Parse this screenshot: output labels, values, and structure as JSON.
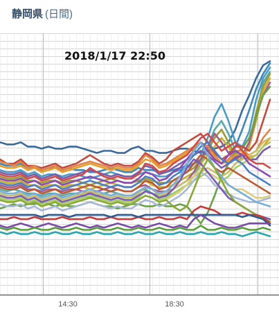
{
  "header": {
    "title": "静岡県",
    "subtitle": "(日間)"
  },
  "colors": {
    "grid_h": "#d6d6d6",
    "grid_v": "#e6e6e6",
    "axis": "#6a6a6a"
  },
  "chart_data": {
    "type": "line",
    "title": "",
    "timestamp": "2018/1/17 22:50",
    "x_ticks": [
      "14:30",
      "18:30"
    ],
    "grid": true,
    "series": [
      {
        "color": "#3a6a9a",
        "values": [
          60,
          59,
          59,
          60,
          58,
          58,
          57,
          58,
          57,
          57,
          58,
          58,
          57,
          56,
          55,
          56,
          56,
          55,
          55,
          57,
          58,
          56,
          56,
          55,
          55,
          56,
          57,
          57,
          56,
          55,
          56,
          57,
          58,
          60,
          66,
          75,
          82,
          90,
          96,
          98
        ]
      },
      {
        "color": "#3e88b8",
        "values": [
          50,
          49,
          49,
          50,
          48,
          48,
          47,
          48,
          48,
          47,
          48,
          47,
          47,
          46,
          46,
          47,
          48,
          47,
          46,
          46,
          48,
          47,
          47,
          46,
          46,
          47,
          48,
          49,
          50,
          52,
          58,
          64,
          60,
          55,
          58,
          66,
          75,
          85,
          92,
          97
        ]
      },
      {
        "color": "#4a9cc4",
        "values": [
          47,
          46,
          46,
          47,
          45,
          46,
          44,
          45,
          45,
          44,
          45,
          45,
          44,
          43,
          44,
          45,
          46,
          45,
          44,
          44,
          45,
          46,
          45,
          44,
          44,
          46,
          47,
          48,
          50,
          54,
          62,
          72,
          78,
          70,
          60,
          58,
          65,
          80,
          90,
          95
        ]
      },
      {
        "color": "#5aa8a8",
        "values": [
          38,
          37,
          38,
          37,
          36,
          36,
          35,
          36,
          36,
          35,
          36,
          36,
          35,
          34,
          35,
          36,
          37,
          36,
          35,
          35,
          37,
          38,
          36,
          35,
          35,
          36,
          38,
          40,
          44,
          50,
          58,
          66,
          70,
          64,
          56,
          52,
          58,
          72,
          88,
          93
        ]
      },
      {
        "color": "#9a9a3a",
        "values": [
          44,
          43,
          43,
          44,
          42,
          42,
          41,
          42,
          42,
          41,
          42,
          42,
          41,
          40,
          41,
          42,
          43,
          42,
          41,
          41,
          42,
          43,
          42,
          41,
          41,
          42,
          44,
          46,
          48,
          52,
          56,
          62,
          66,
          60,
          54,
          54,
          60,
          74,
          86,
          92
        ]
      },
      {
        "color": "#c6b032",
        "values": [
          42,
          41,
          41,
          42,
          40,
          40,
          39,
          40,
          40,
          39,
          40,
          40,
          39,
          38,
          39,
          40,
          41,
          40,
          39,
          39,
          41,
          42,
          40,
          39,
          39,
          40,
          42,
          44,
          46,
          50,
          54,
          58,
          62,
          58,
          52,
          52,
          58,
          70,
          84,
          90
        ]
      },
      {
        "color": "#a45c8c",
        "values": [
          40,
          39,
          39,
          40,
          38,
          38,
          37,
          38,
          38,
          37,
          38,
          38,
          37,
          36,
          37,
          38,
          39,
          38,
          37,
          37,
          39,
          40,
          38,
          37,
          37,
          38,
          40,
          42,
          46,
          52,
          58,
          64,
          60,
          55,
          52,
          54,
          60,
          72,
          82,
          88
        ]
      },
      {
        "color": "#6aa14a",
        "values": [
          29,
          30,
          31,
          30,
          31,
          31,
          32,
          31,
          30,
          31,
          30,
          30,
          31,
          32,
          31,
          30,
          30,
          29,
          30,
          31,
          31,
          30,
          30,
          31,
          30,
          30,
          31,
          30,
          26,
          22,
          27,
          35,
          44,
          50,
          55,
          57,
          62,
          72,
          82,
          86
        ]
      },
      {
        "color": "#c24a3c",
        "values": [
          52,
          50,
          50,
          52,
          49,
          49,
          48,
          49,
          50,
          48,
          49,
          50,
          52,
          54,
          52,
          50,
          49,
          50,
          49,
          49,
          51,
          55,
          53,
          50,
          52,
          56,
          58,
          60,
          62,
          64,
          60,
          55,
          52,
          54,
          58,
          58,
          56,
          60,
          70,
          80
        ]
      },
      {
        "color": "#e0854a",
        "values": [
          51,
          50,
          49,
          51,
          48,
          49,
          47,
          48,
          49,
          47,
          48,
          49,
          50,
          51,
          50,
          49,
          48,
          49,
          48,
          48,
          50,
          54,
          52,
          49,
          50,
          52,
          54,
          56,
          58,
          60,
          58,
          54,
          50,
          52,
          56,
          56,
          54,
          56,
          62,
          66
        ]
      },
      {
        "color": "#e6a02a",
        "values": [
          49,
          48,
          48,
          49,
          47,
          48,
          46,
          47,
          48,
          46,
          47,
          48,
          49,
          50,
          49,
          48,
          47,
          48,
          47,
          47,
          49,
          52,
          51,
          48,
          49,
          51,
          53,
          55,
          57,
          60,
          56,
          53,
          50,
          51,
          54,
          55,
          53,
          54,
          58,
          62
        ]
      },
      {
        "color": "#7c5ca8",
        "values": [
          46,
          45,
          45,
          46,
          44,
          45,
          43,
          44,
          45,
          43,
          44,
          45,
          46,
          47,
          46,
          45,
          44,
          45,
          44,
          44,
          46,
          49,
          48,
          45,
          46,
          48,
          50,
          52,
          54,
          56,
          54,
          51,
          48,
          50,
          53,
          54,
          52,
          52,
          56,
          58
        ]
      },
      {
        "color": "#c8be6a",
        "values": [
          36,
          35,
          35,
          36,
          34,
          35,
          33,
          34,
          35,
          33,
          34,
          35,
          36,
          37,
          36,
          35,
          34,
          35,
          34,
          34,
          36,
          39,
          38,
          35,
          36,
          38,
          40,
          42,
          44,
          46,
          48,
          46,
          44,
          46,
          50,
          52,
          54,
          56,
          60,
          62
        ]
      },
      {
        "color": "#a6cc66",
        "values": [
          34,
          33,
          33,
          34,
          32,
          33,
          31,
          32,
          33,
          31,
          32,
          33,
          34,
          35,
          34,
          33,
          32,
          33,
          32,
          32,
          34,
          37,
          36,
          33,
          34,
          36,
          38,
          40,
          42,
          44,
          46,
          44,
          42,
          44,
          48,
          50,
          52,
          54,
          58,
          60
        ]
      },
      {
        "color": "#d04a4a",
        "values": [
          45,
          44,
          44,
          45,
          43,
          44,
          42,
          43,
          44,
          42,
          43,
          44,
          45,
          48,
          46,
          44,
          43,
          44,
          43,
          43,
          45,
          50,
          49,
          46,
          47,
          50,
          52,
          54,
          58,
          62,
          64,
          60,
          56,
          58,
          60,
          56,
          52,
          50,
          50,
          48
        ]
      },
      {
        "color": "#8c4ab0",
        "values": [
          43,
          42,
          42,
          43,
          41,
          42,
          40,
          41,
          42,
          40,
          41,
          42,
          43,
          44,
          43,
          42,
          41,
          42,
          41,
          41,
          43,
          46,
          45,
          42,
          43,
          46,
          48,
          52,
          56,
          60,
          56,
          52,
          50,
          54,
          56,
          54,
          50,
          48,
          46,
          44
        ]
      },
      {
        "color": "#4c7ec4",
        "values": [
          41,
          40,
          40,
          41,
          39,
          40,
          38,
          39,
          40,
          38,
          39,
          40,
          41,
          42,
          41,
          40,
          39,
          40,
          39,
          39,
          41,
          44,
          43,
          40,
          41,
          44,
          46,
          50,
          54,
          58,
          60,
          56,
          52,
          50,
          52,
          50,
          46,
          44,
          42,
          40
        ]
      },
      {
        "color": "#b85a32",
        "values": [
          39,
          38,
          38,
          39,
          37,
          38,
          36,
          37,
          38,
          36,
          37,
          38,
          39,
          40,
          39,
          38,
          37,
          38,
          37,
          37,
          39,
          42,
          41,
          38,
          39,
          42,
          44,
          46,
          50,
          54,
          52,
          48,
          46,
          48,
          46,
          44,
          42,
          40,
          38,
          36
        ]
      },
      {
        "color": "#d9cf84",
        "values": [
          33,
          32,
          32,
          33,
          31,
          32,
          30,
          31,
          32,
          30,
          31,
          32,
          33,
          34,
          33,
          32,
          31,
          32,
          31,
          31,
          33,
          35,
          34,
          32,
          33,
          35,
          37,
          40,
          44,
          48,
          46,
          44,
          42,
          40,
          38,
          38,
          36,
          34,
          34,
          35
        ]
      },
      {
        "color": "#a8b8d8",
        "values": [
          31,
          30,
          30,
          31,
          29,
          30,
          28,
          29,
          30,
          28,
          29,
          30,
          31,
          32,
          31,
          30,
          29,
          30,
          29,
          29,
          31,
          33,
          32,
          30,
          31,
          33,
          35,
          38,
          42,
          46,
          44,
          40,
          38,
          36,
          34,
          33,
          32,
          32,
          33,
          34
        ]
      },
      {
        "color": "#7aaed6",
        "values": [
          37,
          36,
          36,
          37,
          35,
          36,
          34,
          35,
          36,
          34,
          35,
          36,
          37,
          38,
          37,
          36,
          35,
          36,
          35,
          35,
          37,
          39,
          38,
          36,
          37,
          40,
          44,
          50,
          56,
          60,
          54,
          48,
          44,
          40,
          38,
          36,
          34,
          32,
          31,
          30
        ]
      },
      {
        "color": "#7b5ab5",
        "values": [
          35,
          34,
          34,
          35,
          33,
          34,
          32,
          33,
          34,
          32,
          33,
          34,
          35,
          36,
          35,
          34,
          33,
          34,
          33,
          33,
          35,
          37,
          36,
          34,
          35,
          38,
          42,
          48,
          52,
          50,
          46,
          42,
          38,
          34,
          32,
          30,
          28,
          26,
          25,
          24
        ]
      },
      {
        "color": "#88a838",
        "values": [
          33,
          32,
          32,
          33,
          31,
          32,
          30,
          31,
          32,
          30,
          31,
          32,
          33,
          34,
          33,
          32,
          31,
          32,
          31,
          31,
          33,
          35,
          34,
          32,
          33,
          30,
          28,
          30,
          38,
          46,
          52,
          48,
          42,
          36,
          32,
          30,
          28,
          26,
          24,
          23
        ]
      },
      {
        "color": "#c23c3c",
        "values": [
          24,
          24,
          25,
          24,
          24,
          25,
          24,
          24,
          24,
          25,
          24,
          24,
          24,
          25,
          24,
          24,
          25,
          24,
          24,
          24,
          25,
          24,
          24,
          25,
          24,
          24,
          25,
          24,
          28,
          30,
          29,
          28,
          26,
          26,
          26,
          27,
          26,
          26,
          25,
          22
        ]
      },
      {
        "color": "#2c5a8c",
        "values": [
          26,
          26,
          26,
          26,
          26,
          26,
          25,
          26,
          26,
          26,
          25,
          26,
          26,
          26,
          26,
          26,
          25,
          26,
          26,
          26,
          25,
          26,
          26,
          26,
          26,
          26,
          26,
          26,
          26,
          26,
          26,
          26,
          26,
          26,
          26,
          25,
          26,
          25,
          24,
          21
        ]
      },
      {
        "color": "#7a4aa8",
        "values": [
          21,
          20,
          21,
          22,
          21,
          20,
          21,
          22,
          21,
          20,
          21,
          22,
          21,
          20,
          21,
          20,
          21,
          22,
          21,
          20,
          21,
          20,
          21,
          22,
          21,
          20,
          21,
          20,
          24,
          26,
          24,
          22,
          21,
          20,
          20,
          21,
          22,
          22,
          22,
          22
        ]
      },
      {
        "color": "#2aa6ae",
        "values": [
          18,
          17,
          18,
          17,
          17,
          18,
          17,
          17,
          18,
          17,
          17,
          18,
          17,
          17,
          18,
          17,
          17,
          18,
          17,
          17,
          18,
          17,
          17,
          18,
          17,
          17,
          18,
          17,
          17,
          18,
          17,
          17,
          18,
          17,
          17,
          16,
          17,
          18,
          17,
          16
        ]
      },
      {
        "color": "#5a9c3a",
        "values": [
          20,
          19,
          20,
          19,
          19,
          20,
          19,
          19,
          20,
          19,
          19,
          20,
          19,
          19,
          20,
          19,
          19,
          20,
          19,
          19,
          20,
          19,
          19,
          20,
          19,
          19,
          20,
          19,
          19,
          21,
          19,
          19,
          20,
          19,
          19,
          20,
          19,
          19,
          20,
          19
        ]
      }
    ]
  }
}
